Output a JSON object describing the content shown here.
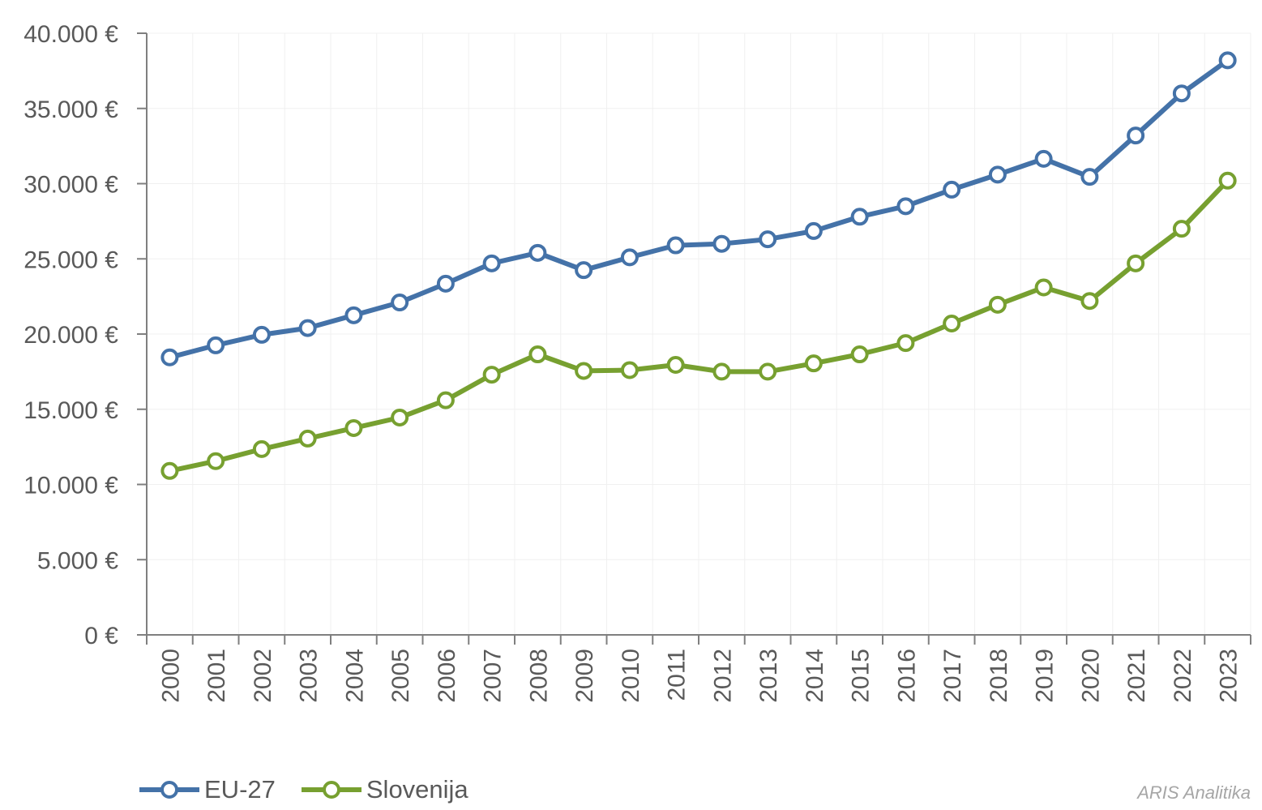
{
  "chart_data": {
    "type": "line",
    "title": "",
    "xlabel": "",
    "ylabel": "",
    "x": [
      "2000",
      "2001",
      "2002",
      "2003",
      "2004",
      "2005",
      "2006",
      "2007",
      "2008",
      "2009",
      "2010",
      "2011",
      "2012",
      "2013",
      "2014",
      "2015",
      "2016",
      "2017",
      "2018",
      "2019",
      "2020",
      "2021",
      "2022",
      "2023"
    ],
    "ylim": [
      0,
      40000
    ],
    "yticks": [
      0,
      5000,
      10000,
      15000,
      20000,
      25000,
      30000,
      35000,
      40000
    ],
    "ytick_labels": [
      "0 €",
      "5.000 €",
      "10.000 €",
      "15.000 €",
      "20.000 €",
      "25.000 €",
      "30.000 €",
      "35.000 €",
      "40.000 €"
    ],
    "grid": true,
    "legend_position": "bottom-left",
    "series": [
      {
        "name": "EU-27",
        "color": "#4472a8",
        "values": [
          18450,
          19250,
          19950,
          20400,
          21250,
          22100,
          23350,
          24700,
          25400,
          24250,
          25100,
          25900,
          26000,
          26300,
          26850,
          27800,
          28500,
          29600,
          30600,
          31650,
          30450,
          33200,
          36000,
          38200
        ]
      },
      {
        "name": "Slovenija",
        "color": "#77a030",
        "values": [
          10900,
          11550,
          12350,
          13050,
          13750,
          14450,
          15600,
          17300,
          18650,
          17550,
          17600,
          17950,
          17500,
          17500,
          18050,
          18650,
          19400,
          20700,
          21950,
          23100,
          22200,
          24700,
          27000,
          30200
        ]
      }
    ]
  },
  "source_label": "ARIS Analitika"
}
